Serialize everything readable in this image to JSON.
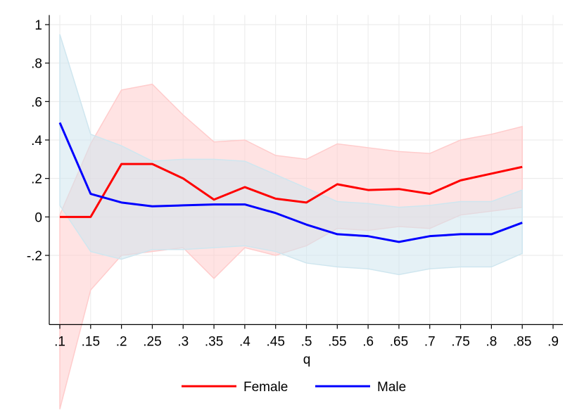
{
  "chart_data": {
    "type": "line",
    "title": "",
    "xlabel": "q",
    "ylabel": "",
    "x": [
      0.1,
      0.15,
      0.2,
      0.25,
      0.3,
      0.35,
      0.4,
      0.45,
      0.5,
      0.55,
      0.6,
      0.65,
      0.7,
      0.75,
      0.8,
      0.85
    ],
    "xlim": [
      0.1,
      0.9
    ],
    "ylim": [
      -0.56,
      1.05
    ],
    "x_ticks": [
      0.1,
      0.15,
      0.2,
      0.25,
      0.3,
      0.35,
      0.4,
      0.45,
      0.5,
      0.55,
      0.6,
      0.65,
      0.7,
      0.75,
      0.8,
      0.85,
      0.9
    ],
    "x_tick_labels": [
      ".1",
      ".15",
      ".2",
      ".25",
      ".3",
      ".35",
      ".4",
      ".45",
      ".5",
      ".55",
      ".6",
      ".65",
      ".7",
      ".75",
      ".8",
      ".85",
      ".9"
    ],
    "y_ticks": [
      1,
      0.8,
      0.6,
      0.4,
      0.2,
      0,
      -0.2
    ],
    "y_tick_labels": [
      "1",
      ".8",
      ".6",
      ".4",
      ".2",
      "0",
      "-.2"
    ],
    "grid": true,
    "legend_position": "bottom",
    "series": [
      {
        "name": "Female",
        "color": "#ff0000",
        "values": [
          0.0,
          0.0,
          0.275,
          0.275,
          0.2,
          0.09,
          0.155,
          0.095,
          0.075,
          0.17,
          0.14,
          0.145,
          0.12,
          0.19,
          0.225,
          0.26
        ],
        "ci_lower": [
          -1.0,
          -0.38,
          -0.2,
          -0.18,
          -0.16,
          -0.32,
          -0.16,
          -0.2,
          -0.15,
          -0.06,
          -0.07,
          -0.05,
          -0.06,
          0.01,
          0.03,
          0.05
        ],
        "ci_upper": [
          0.01,
          0.38,
          0.66,
          0.69,
          0.53,
          0.39,
          0.4,
          0.32,
          0.3,
          0.38,
          0.36,
          0.34,
          0.33,
          0.4,
          0.43,
          0.47
        ],
        "band_color": "#ffcccc"
      },
      {
        "name": "Male",
        "color": "#0000ff",
        "values": [
          0.49,
          0.12,
          0.075,
          0.055,
          0.06,
          0.065,
          0.065,
          0.02,
          -0.04,
          -0.09,
          -0.1,
          -0.13,
          -0.1,
          -0.09,
          -0.09,
          -0.03
        ],
        "ci_lower": [
          0.06,
          -0.18,
          -0.22,
          -0.17,
          -0.17,
          -0.16,
          -0.15,
          -0.18,
          -0.24,
          -0.26,
          -0.27,
          -0.3,
          -0.27,
          -0.26,
          -0.26,
          -0.19
        ],
        "ci_upper": [
          0.95,
          0.43,
          0.37,
          0.29,
          0.3,
          0.3,
          0.29,
          0.22,
          0.15,
          0.08,
          0.07,
          0.05,
          0.06,
          0.08,
          0.08,
          0.14
        ],
        "band_color": "#cfe6ef"
      }
    ]
  }
}
